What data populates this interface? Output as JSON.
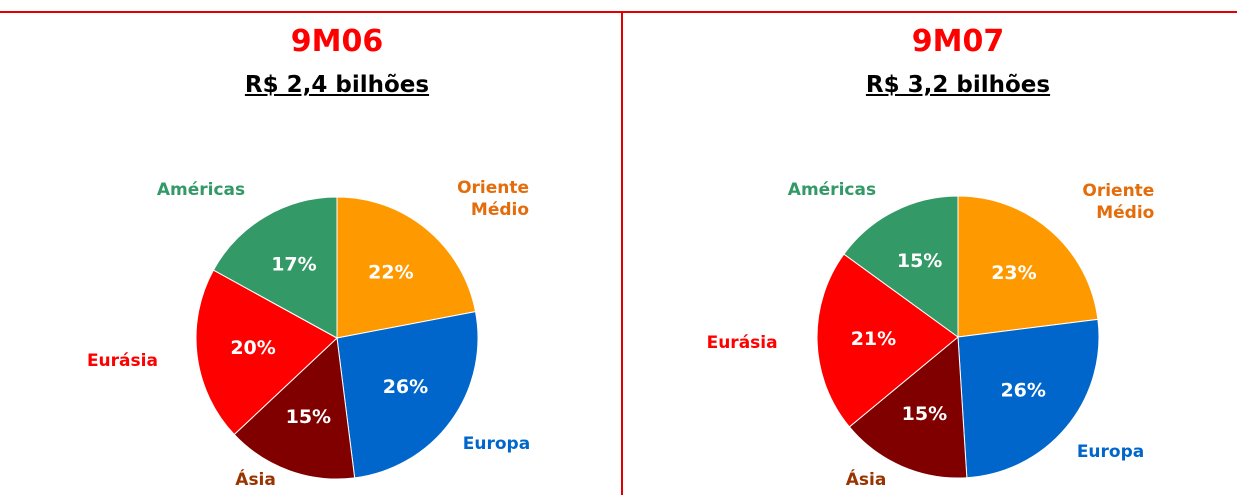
{
  "chart_data": [
    {
      "type": "pie",
      "title": "9M06",
      "subtitle": "R$ 2,4 bilhões",
      "categories": [
        "Oriente Médio",
        "Europa",
        "Ásia",
        "Eurásia",
        "Américas"
      ],
      "values": [
        22,
        26,
        15,
        20,
        17
      ],
      "value_labels": [
        "22%",
        "26%",
        "15%",
        "20%",
        "17%"
      ],
      "colors": [
        "#ff9900",
        "#0066cc",
        "#800000",
        "#ff0000",
        "#339966"
      ],
      "label_colors": [
        "#e46c0a",
        "#0066cc",
        "#993300",
        "#ff0000",
        "#339966"
      ]
    },
    {
      "type": "pie",
      "title": "9M07",
      "subtitle": "R$ 3,2 bilhões",
      "categories": [
        "Oriente Médio",
        "Europa",
        "Ásia",
        "Eurásia",
        "Américas"
      ],
      "values": [
        23,
        26,
        15,
        21,
        15
      ],
      "value_labels": [
        "23%",
        "26%",
        "15%",
        "21%",
        "15%"
      ],
      "colors": [
        "#ff9900",
        "#0066cc",
        "#800000",
        "#ff0000",
        "#339966"
      ],
      "label_colors": [
        "#e46c0a",
        "#0066cc",
        "#993300",
        "#ff0000",
        "#339966"
      ]
    }
  ]
}
